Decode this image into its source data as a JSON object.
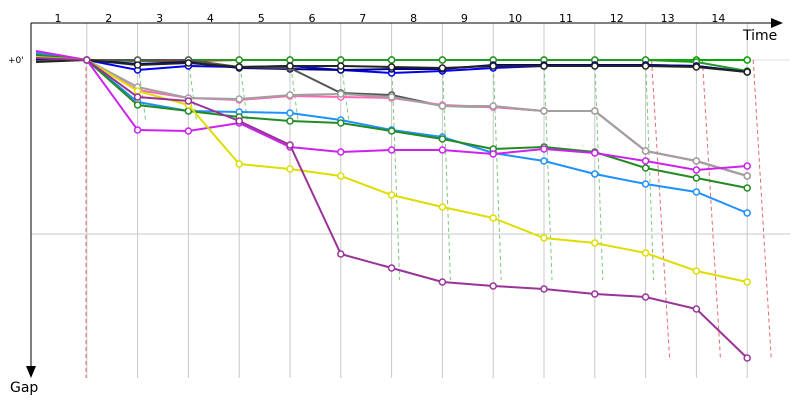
{
  "chart_data": {
    "type": "line",
    "title": "",
    "xlabel": "Time",
    "ylabel": "Gap",
    "zero_label": "+0'",
    "lap_labels": [
      "1",
      "2",
      "3",
      "4",
      "5",
      "6",
      "7",
      "8",
      "9",
      "10",
      "11",
      "12",
      "13",
      "14"
    ],
    "ylim": [
      0,
      300
    ],
    "y_direction": "down",
    "grid": true,
    "x": [
      1,
      2,
      3,
      4,
      5,
      6,
      7,
      8,
      9,
      10,
      11,
      12,
      13,
      14,
      15
    ],
    "colors": {
      "axis": "#000000",
      "grid": "#c8c8c8",
      "zero_line": "#e0e0e0",
      "pit_green": "#7dc97d",
      "pit_red": "#e36d6d"
    },
    "series": [
      {
        "color": "#ff0000",
        "values": [
          -4,
          0,
          1,
          1,
          0,
          0,
          0,
          0,
          0,
          0,
          0,
          0,
          0,
          0,
          0
        ]
      },
      {
        "color": "#00aa00",
        "values": [
          -3,
          0,
          0,
          0,
          0,
          0,
          0,
          0,
          0,
          0,
          0,
          0,
          0,
          0,
          0
        ]
      },
      {
        "color": "#229922",
        "values": [
          -2,
          0,
          1,
          0,
          0,
          0,
          0,
          0,
          0,
          0,
          0,
          0,
          0,
          2,
          11
        ]
      },
      {
        "color": "#0000ee",
        "values": [
          -1,
          0,
          10,
          6,
          7,
          6,
          10,
          13,
          11,
          8,
          6,
          5,
          5,
          6,
          12
        ]
      },
      {
        "color": "#000080",
        "values": [
          0,
          0,
          4,
          2,
          8,
          9,
          10,
          9,
          9,
          5,
          5,
          5,
          5,
          6,
          12
        ]
      },
      {
        "color": "#555555",
        "values": [
          1,
          0,
          0,
          0,
          7,
          8,
          33,
          35,
          46,
          47,
          51,
          51,
          91,
          101,
          116
        ]
      },
      {
        "color": "#222222",
        "values": [
          2,
          0,
          5,
          3,
          7,
          6,
          6,
          7,
          8,
          6,
          6,
          6,
          6,
          7,
          12
        ]
      },
      {
        "color": "#ff69b4",
        "values": [
          -8,
          0,
          30,
          38,
          40,
          36,
          37,
          38,
          45,
          47,
          51,
          51,
          91,
          101,
          116
        ]
      },
      {
        "color": "#a0a0a0",
        "values": [
          -6,
          0,
          27,
          38,
          39,
          35,
          34,
          37,
          46,
          46,
          51,
          51,
          91,
          101,
          116
        ]
      },
      {
        "color": "#1e90ff",
        "values": [
          -7,
          0,
          42,
          51,
          52,
          53,
          60,
          70,
          77,
          93,
          101,
          114,
          124,
          132,
          153
        ]
      },
      {
        "color": "#228b22",
        "values": [
          -5,
          0,
          45,
          51,
          57,
          61,
          63,
          71,
          79,
          89,
          87,
          92,
          108,
          118,
          128
        ]
      },
      {
        "color": "#cc22ee",
        "values": [
          -9,
          0,
          70,
          71,
          63,
          87,
          92,
          90,
          90,
          94,
          89,
          93,
          101,
          110,
          106
        ]
      },
      {
        "color": "#dddd00",
        "values": [
          -3,
          0,
          31,
          45,
          104,
          109,
          116,
          135,
          147,
          158,
          178,
          183,
          193,
          211,
          222
        ]
      },
      {
        "color": "#993399",
        "values": [
          -2,
          0,
          37,
          41,
          61,
          85,
          194,
          208,
          222,
          226,
          229,
          234,
          237,
          249,
          298
        ]
      }
    ]
  }
}
